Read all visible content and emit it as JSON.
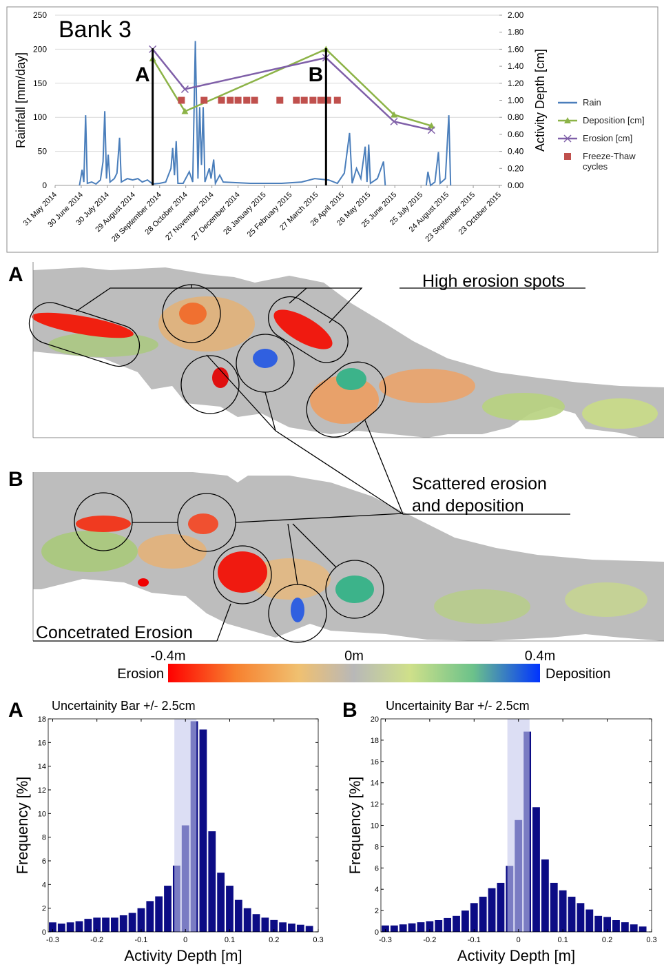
{
  "chart_data": [
    {
      "type": "line",
      "title": "Bank 3",
      "y_label": "Rainfall [mm/day]",
      "y2_label": "Activity Depth [cm]",
      "xlim": [
        "2014-05-31",
        "2015-10-23"
      ],
      "xticks": [
        {
          "value": "2014-05-31",
          "label": "31 May 2014"
        },
        {
          "value": "2014-06-30",
          "label": "30 June 2014"
        },
        {
          "value": "2014-07-30",
          "label": "30 July 2014"
        },
        {
          "value": "2014-08-29",
          "label": "29 August 2014"
        },
        {
          "value": "2014-09-28",
          "label": "28 September 2014"
        },
        {
          "value": "2014-10-28",
          "label": "28 October 2014"
        },
        {
          "value": "2014-11-27",
          "label": "27 November 2014"
        },
        {
          "value": "2014-12-27",
          "label": "27 December 2014"
        },
        {
          "value": "2015-01-26",
          "label": "26 January 2015"
        },
        {
          "value": "2015-02-25",
          "label": "25 February 2015"
        },
        {
          "value": "2015-03-27",
          "label": "27 March 2015"
        },
        {
          "value": "2015-04-26",
          "label": "26 April 2015"
        },
        {
          "value": "2015-05-26",
          "label": "26 May 2015"
        },
        {
          "value": "2015-06-25",
          "label": "25 June 2015"
        },
        {
          "value": "2015-07-25",
          "label": "25 July 2015"
        },
        {
          "value": "2015-08-24",
          "label": "24 August 2015"
        },
        {
          "value": "2015-09-23",
          "label": "23 September 2015"
        },
        {
          "value": "2015-10-23",
          "label": "23 October 2015"
        }
      ],
      "ylim": [
        0,
        250
      ],
      "yticks": [
        0,
        50,
        100,
        150,
        200,
        250
      ],
      "y2lim": [
        0,
        2
      ],
      "y2ticks": [
        {
          "value": 0,
          "label": "0.00"
        },
        {
          "value": 0.2,
          "label": "0.20"
        },
        {
          "value": 0.4,
          "label": "0.40"
        },
        {
          "value": 0.6,
          "label": "0.60"
        },
        {
          "value": 0.8,
          "label": "0.80"
        },
        {
          "value": 1,
          "label": "1.00"
        },
        {
          "value": 1.2,
          "label": "1.20"
        },
        {
          "value": 1.4,
          "label": "1.40"
        },
        {
          "value": 1.6,
          "label": "1.60"
        },
        {
          "value": 1.8,
          "label": "1.80"
        },
        {
          "value": 2,
          "label": "2.00"
        }
      ],
      "grid": true,
      "series": [
        {
          "name": "Rain",
          "color": "#4a7ebb",
          "marker": "none",
          "x": [
            "2014-06-28",
            "2014-07-01",
            "2014-07-03",
            "2014-07-05",
            "2014-07-07",
            "2014-07-12",
            "2014-07-17",
            "2014-07-22",
            "2014-07-25",
            "2014-07-27",
            "2014-07-29",
            "2014-07-31",
            "2014-08-02",
            "2014-08-07",
            "2014-08-10",
            "2014-08-13",
            "2014-08-15",
            "2014-08-22",
            "2014-08-28",
            "2014-09-03",
            "2014-09-08",
            "2014-09-14",
            "2014-09-20",
            "2014-09-28",
            "2014-10-05",
            "2014-10-11",
            "2014-10-13",
            "2014-10-15",
            "2014-10-17",
            "2014-10-19",
            "2014-10-25",
            "2014-11-01",
            "2014-11-05",
            "2014-11-08",
            "2014-11-11",
            "2014-11-13",
            "2014-11-15",
            "2014-11-17",
            "2014-11-19",
            "2014-11-24",
            "2014-11-26",
            "2014-11-29",
            "2014-12-01",
            "2014-12-06",
            "2014-12-10",
            "2015-01-10",
            "2015-02-15",
            "2015-03-10",
            "2015-03-25",
            "2015-04-10",
            "2015-04-20",
            "2015-04-28",
            "2015-05-04",
            "2015-05-07",
            "2015-05-12",
            "2015-05-17",
            "2015-05-22",
            "2015-05-24",
            "2015-05-26",
            "2015-05-28",
            "2015-06-05",
            "2015-06-12",
            "2015-06-14",
            "2015-07-10",
            "2015-07-31",
            "2015-08-02",
            "2015-08-05",
            "2015-08-10",
            "2015-08-14",
            "2015-08-16",
            "2015-08-22",
            "2015-08-26",
            "2015-08-28"
          ],
          "values": [
            0,
            23,
            5,
            103,
            3,
            5,
            2,
            8,
            35,
            109,
            10,
            45,
            5,
            10,
            18,
            70,
            5,
            10,
            8,
            10,
            5,
            8,
            2,
            3,
            5,
            25,
            55,
            15,
            65,
            3,
            3,
            20,
            5,
            212,
            10,
            115,
            30,
            115,
            5,
            25,
            10,
            38,
            3,
            15,
            5,
            3,
            3,
            5,
            10,
            8,
            3,
            18,
            77,
            3,
            25,
            10,
            57,
            5,
            60,
            3,
            10,
            35,
            0,
            null,
            0,
            20,
            0,
            5,
            49,
            3,
            10,
            103,
            0
          ]
        },
        {
          "name": "Deposition [cm]",
          "color": "#8cb347",
          "marker": "triangle",
          "axis": "y2",
          "x": [
            "2014-09-20",
            "2014-10-27",
            "2015-04-07",
            "2015-06-24",
            "2015-08-06"
          ],
          "values": [
            1.49,
            0.87,
            1.6,
            0.83,
            0.7
          ]
        },
        {
          "name": "Erosion [cm]",
          "color": "#7f5fa8",
          "marker": "cross",
          "axis": "y2",
          "x": [
            "2014-09-20",
            "2014-10-27",
            "2015-04-07",
            "2015-06-24",
            "2015-08-06"
          ],
          "values": [
            1.6,
            1.13,
            1.5,
            0.75,
            0.65
          ]
        },
        {
          "name": "Freeze-Thaw cycles",
          "color": "#c0504d",
          "marker": "square",
          "line": false,
          "axis": "y2",
          "x": [
            "2014-10-23",
            "2014-11-18",
            "2014-12-08",
            "2014-12-18",
            "2014-12-27",
            "2015-01-06",
            "2015-01-15",
            "2015-02-13",
            "2015-03-04",
            "2015-03-13",
            "2015-03-23",
            "2015-04-01",
            "2015-04-09",
            "2015-04-20"
          ],
          "values": [
            1,
            1,
            1,
            1,
            1,
            1,
            1,
            1,
            1,
            1,
            1,
            1,
            1,
            1
          ]
        }
      ],
      "annotations": [
        {
          "text": "A",
          "x": "2014-09-20"
        },
        {
          "text": "B",
          "x": "2015-04-07"
        }
      ]
    },
    {
      "type": "histogram",
      "panel": "A",
      "title": "Uncertainity Bar +/- 2.5cm",
      "x_label": "Activity Depth [m]",
      "y_label": "Frequency [%]",
      "xlim": [
        -0.31,
        0.3
      ],
      "xticks": [
        -0.3,
        -0.2,
        -0.1,
        0,
        0.1,
        0.2,
        0.3
      ],
      "ylim": [
        0,
        18
      ],
      "yticks": [
        0,
        2,
        4,
        6,
        8,
        10,
        12,
        14,
        16,
        18
      ],
      "color": "#0c0c85",
      "band": [
        -0.025,
        0.025
      ],
      "bins": [
        -0.31,
        -0.29,
        -0.27,
        -0.25,
        -0.23,
        -0.21,
        -0.19,
        -0.17,
        -0.15,
        -0.13,
        -0.11,
        -0.09,
        -0.07,
        -0.05,
        -0.03,
        -0.01,
        0.01,
        0.03,
        0.05,
        0.07,
        0.09,
        0.11,
        0.13,
        0.15,
        0.17,
        0.19,
        0.21,
        0.23,
        0.25,
        0.27,
        0.29
      ],
      "values": [
        0.8,
        0.7,
        0.8,
        0.9,
        1.1,
        1.2,
        1.2,
        1.2,
        1.4,
        1.6,
        2.0,
        2.6,
        3.0,
        3.9,
        5.6,
        9.0,
        17.8,
        17.1,
        8.5,
        5.0,
        3.9,
        2.7,
        2.0,
        1.5,
        1.2,
        1.0,
        0.8,
        0.7,
        0.6,
        0.5
      ]
    },
    {
      "type": "histogram",
      "panel": "B",
      "title": "Uncertainity Bar +/- 2.5cm",
      "x_label": "Activity Depth [m]",
      "y_label": "Frequency [%]",
      "xlim": [
        -0.31,
        0.3
      ],
      "xticks": [
        -0.3,
        -0.2,
        -0.1,
        0,
        0.1,
        0.2,
        0.3
      ],
      "ylim": [
        0,
        20
      ],
      "yticks": [
        0,
        2,
        4,
        6,
        8,
        10,
        12,
        14,
        16,
        18,
        20
      ],
      "color": "#0c0c85",
      "band": [
        -0.025,
        0.025
      ],
      "bins": [
        -0.31,
        -0.29,
        -0.27,
        -0.25,
        -0.23,
        -0.21,
        -0.19,
        -0.17,
        -0.15,
        -0.13,
        -0.11,
        -0.09,
        -0.07,
        -0.05,
        -0.03,
        -0.01,
        0.01,
        0.03,
        0.05,
        0.07,
        0.09,
        0.11,
        0.13,
        0.15,
        0.17,
        0.19,
        0.21,
        0.23,
        0.25,
        0.27,
        0.29
      ],
      "values": [
        0.6,
        0.6,
        0.7,
        0.8,
        0.9,
        1.0,
        1.1,
        1.3,
        1.5,
        2.0,
        2.7,
        3.3,
        4.1,
        4.6,
        6.2,
        10.5,
        18.8,
        11.7,
        6.8,
        4.6,
        3.9,
        3.3,
        2.7,
        2.1,
        1.5,
        1.4,
        1.1,
        0.9,
        0.7,
        0.5
      ]
    }
  ],
  "figure": {
    "map_labels": [
      "A",
      "B"
    ],
    "annotations": [
      "High erosion spots",
      "Scattered erosion",
      "and deposition",
      "Concetrated Erosion"
    ],
    "colorbar": {
      "range": [
        -0.4,
        0.4
      ],
      "ticks": [
        {
          "value": -0.4,
          "label": "-0.4m"
        },
        {
          "value": 0,
          "label": "0m"
        },
        {
          "value": 0.4,
          "label": "0.4m"
        }
      ],
      "low_label": "Erosion",
      "high_label": "Deposition"
    }
  }
}
